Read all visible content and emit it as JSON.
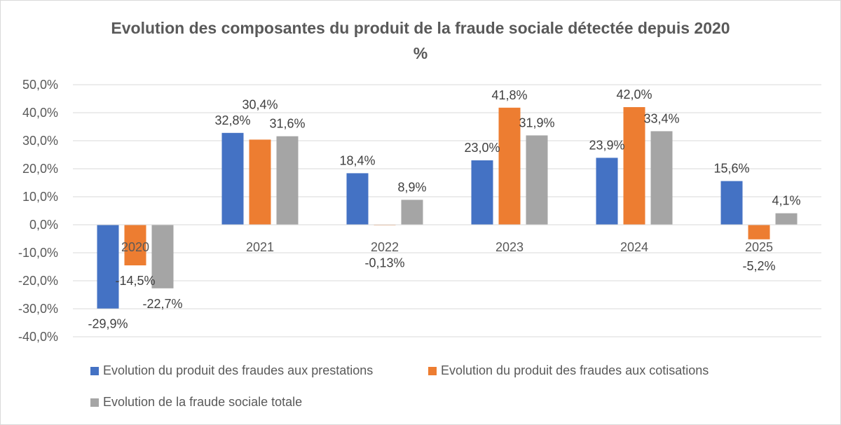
{
  "chart_data": {
    "type": "bar",
    "title": "Evolution des composantes du produit de la fraude sociale détectée depuis 2020",
    "subtitle": "%",
    "categories": [
      "2020",
      "2021",
      "2022",
      "2023",
      "2024",
      "2025"
    ],
    "series": [
      {
        "name": "Evolution du produit des fraudes aux prestations",
        "color": "#4472C4",
        "values": [
          -29.9,
          32.8,
          18.4,
          23.0,
          23.9,
          15.6
        ],
        "labels": [
          "-29,9%",
          "32,8%",
          "18,4%",
          "23,0%",
          "23,9%",
          "15,6%"
        ]
      },
      {
        "name": "Evolution du produit des fraudes aux cotisations",
        "color": "#ED7D31",
        "values": [
          -14.5,
          30.4,
          -0.13,
          41.8,
          42.0,
          -5.2
        ],
        "labels": [
          "-14,5%",
          "30,4%",
          "-0,13%",
          "41,8%",
          "42,0%",
          "-5,2%"
        ]
      },
      {
        "name": "Evolution de la fraude sociale totale",
        "color": "#A5A5A5",
        "values": [
          -22.7,
          31.6,
          8.9,
          31.9,
          33.4,
          4.1
        ],
        "labels": [
          "-22,7%",
          "31,6%",
          "8,9%",
          "31,9%",
          "33,4%",
          "4,1%"
        ]
      }
    ],
    "ylim": [
      -40,
      50
    ],
    "yticks": [
      "-40,0%",
      "-30,0%",
      "-20,0%",
      "-10,0%",
      "0,0%",
      "10,0%",
      "20,0%",
      "30,0%",
      "40,0%",
      "50,0%"
    ],
    "grid": true,
    "legend": "bottom"
  }
}
